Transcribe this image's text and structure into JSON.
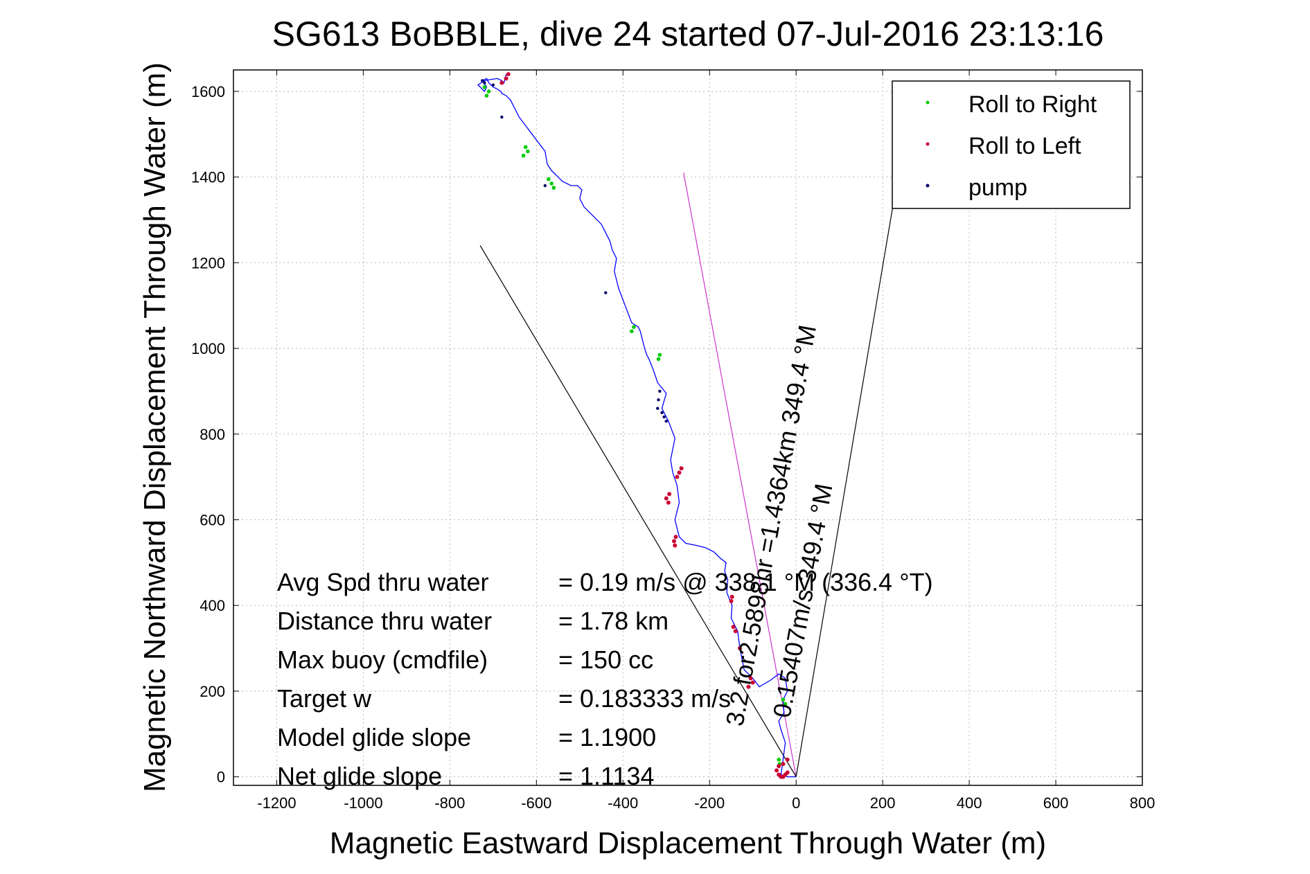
{
  "chart_data": {
    "type": "line",
    "title": "SG613 BoBBLE, dive 24 started 07-Jul-2016 23:13:16",
    "xlabel": "Magnetic Eastward Displacement Through Water (m)",
    "ylabel": "Magnetic Northward Displacement Through Water (m)",
    "xlim": [
      -1300,
      800
    ],
    "ylim": [
      -20,
      1650
    ],
    "xticks": [
      -1200,
      -1000,
      -800,
      -600,
      -400,
      -200,
      0,
      200,
      400,
      600,
      800
    ],
    "yticks": [
      0,
      200,
      400,
      600,
      800,
      1000,
      1200,
      1400,
      1600
    ],
    "xtick_labels": [
      "-1200",
      "-1000",
      "-800",
      "-600",
      "-400",
      "-200",
      "0",
      "200",
      "400",
      "600",
      "800"
    ],
    "ytick_labels": [
      "0",
      "200",
      "400",
      "600",
      "800",
      "1000",
      "1200",
      "1400",
      "1600"
    ],
    "grid": true,
    "legend_position": "top-right",
    "colors": {
      "track": "#0000ff",
      "roll_right": "#00cc00",
      "roll_left": "#cc0033",
      "pump": "#000066",
      "heading_line": "#cc33cc",
      "envelope": "#000000"
    },
    "legend": [
      {
        "label": "Roll to Right",
        "color": "#00cc00"
      },
      {
        "label": "Roll to Left",
        "color": "#cc0033"
      },
      {
        "label": "pump",
        "color": "#000066"
      }
    ],
    "series": [
      {
        "name": "track",
        "x": [
          0,
          -20,
          -35,
          -30,
          -25,
          -35,
          -40,
          -28,
          -30,
          -20,
          -25,
          -40,
          -60,
          -85,
          -100,
          -120,
          -130,
          -135,
          -150,
          -148,
          -160,
          -158,
          -165,
          -162,
          -175,
          -190,
          -210,
          -230,
          -255,
          -270,
          -280,
          -270,
          -275,
          -285,
          -290,
          -280,
          -295,
          -310,
          -300,
          -320,
          -330,
          -340,
          -345,
          -350,
          -355,
          -360,
          -365,
          -380,
          -395,
          -410,
          -420,
          -415,
          -425,
          -430,
          -440,
          -450,
          -470,
          -490,
          -500,
          -495,
          -505,
          -520,
          -540,
          -550,
          -565,
          -575,
          -580,
          -595,
          -610,
          -625,
          -640,
          -650,
          -660,
          -670,
          -680,
          -682,
          -690,
          -700,
          -710,
          -715,
          -725,
          -715,
          -720,
          -735,
          -720,
          -705,
          -690,
          -680,
          -675,
          -670
        ],
        "y": [
          0,
          0,
          5,
          40,
          80,
          110,
          130,
          150,
          180,
          200,
          230,
          240,
          225,
          210,
          230,
          250,
          300,
          340,
          370,
          400,
          430,
          460,
          480,
          500,
          510,
          525,
          535,
          540,
          545,
          560,
          600,
          640,
          680,
          710,
          740,
          790,
          830,
          860,
          895,
          920,
          950,
          975,
          985,
          1000,
          1020,
          1040,
          1050,
          1060,
          1100,
          1140,
          1180,
          1210,
          1230,
          1250,
          1270,
          1290,
          1310,
          1330,
          1350,
          1370,
          1380,
          1380,
          1390,
          1400,
          1415,
          1430,
          1460,
          1480,
          1500,
          1520,
          1540,
          1560,
          1580,
          1590,
          1595,
          1600,
          1605,
          1610,
          1620,
          1630,
          1625,
          1610,
          1600,
          1615,
          1625,
          1628,
          1630,
          1625,
          1620,
          1640
        ]
      }
    ],
    "roll_right_points": {
      "x": [
        -30,
        -25,
        -40,
        -38,
        -565,
        -572,
        -560,
        -620,
        -625,
        -630,
        -375,
        -380,
        -315,
        -318,
        -710,
        -720,
        -715
      ],
      "y": [
        180,
        170,
        40,
        30,
        1385,
        1395,
        1375,
        1460,
        1470,
        1450,
        1050,
        1040,
        985,
        975,
        1600,
        1610,
        1590
      ]
    },
    "roll_left_points": {
      "x": [
        -20,
        -25,
        -30,
        -35,
        -40,
        -45,
        -40,
        -30,
        -20,
        -280,
        -282,
        -278,
        -295,
        -300,
        -293,
        -275,
        -270,
        -265,
        -150,
        -148,
        -100,
        -105,
        -110,
        -130,
        -140,
        -145,
        -680,
        -670,
        -665
      ],
      "y": [
        10,
        5,
        0,
        0,
        5,
        15,
        25,
        30,
        40,
        540,
        550,
        560,
        640,
        650,
        660,
        700,
        710,
        720,
        410,
        420,
        220,
        230,
        210,
        300,
        340,
        350,
        1620,
        1630,
        1640
      ]
    },
    "pump_points": {
      "x": [
        -315,
        -318,
        -320,
        -310,
        -305,
        -300,
        -440,
        -580,
        -680,
        -720,
        -725,
        -700
      ],
      "y": [
        900,
        880,
        860,
        850,
        840,
        830,
        1130,
        1380,
        1540,
        1620,
        1625,
        1615
      ]
    },
    "lines": [
      {
        "name": "heading-line",
        "x1": 0,
        "y1": 0,
        "x2": -260,
        "y2": 1410,
        "color": "#cc33cc"
      },
      {
        "name": "envelope-left",
        "x1": 0,
        "y1": 0,
        "x2": -730,
        "y2": 1240,
        "color": "#000000"
      },
      {
        "name": "envelope-right",
        "x1": 0,
        "y1": 0,
        "x2": 235,
        "y2": 1400,
        "color": "#000000"
      }
    ],
    "heading_annotations": {
      "long": "3.2 for2.5898hr =1.4364km 349.4 °M",
      "short": "0.15407m/s 349.4 °M"
    },
    "annotations": [
      {
        "label": "Avg Spd thru water",
        "value": "=  0.19 m/s @ 338.1 °M (336.4 °T)"
      },
      {
        "label": "Distance thru water",
        "value": "=  1.78 km"
      },
      {
        "label": "Max buoy (cmdfile)",
        "value": "= 150 cc"
      },
      {
        "label": "Target w",
        "value": "= 0.183333 m/s"
      },
      {
        "label": "Model glide slope",
        "value": "= 1.1900"
      },
      {
        "label": "Net glide slope",
        "value": "= 1.1134"
      }
    ]
  }
}
